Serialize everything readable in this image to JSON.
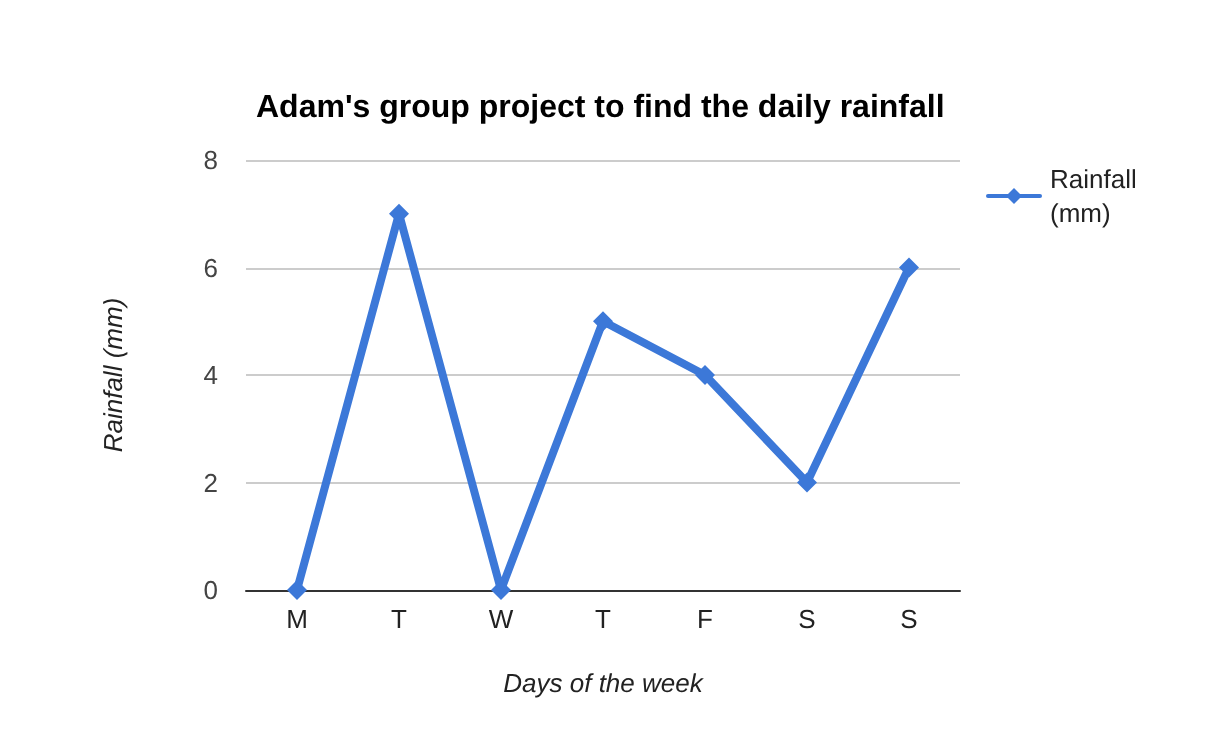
{
  "chart_data": {
    "type": "line",
    "title": "Adam's group project to find the daily rainfall",
    "xlabel": "Days of the week",
    "ylabel": "Rainfall (mm)",
    "categories": [
      "M",
      "T",
      "W",
      "T",
      "F",
      "S",
      "S"
    ],
    "series": [
      {
        "name": "Rainfall (mm)",
        "color": "#3c78d8",
        "values": [
          0,
          7,
          0,
          5,
          4,
          2,
          6
        ]
      }
    ],
    "ylim": [
      0,
      8
    ],
    "yticks": [
      0,
      2,
      4,
      6,
      8
    ],
    "grid": "y",
    "legend": "top right",
    "marker": "diamond",
    "line_style": "solid"
  }
}
